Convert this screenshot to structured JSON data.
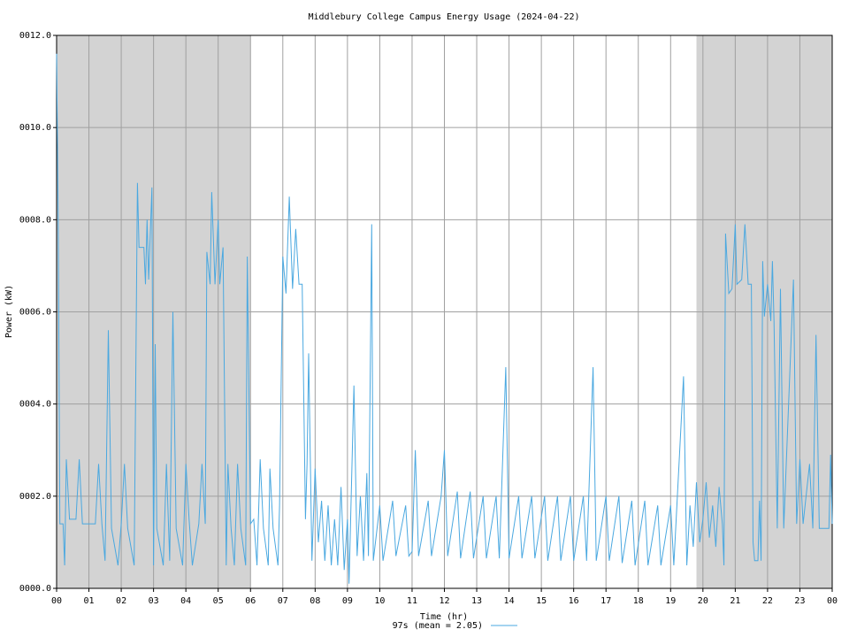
{
  "chart_data": {
    "type": "line",
    "title": "Middlebury College Campus Energy Usage (2024-04-22)",
    "x_label": "Time (hr)",
    "y_label": "Power (kW)",
    "xlim": [
      0,
      24
    ],
    "ylim": [
      0,
      12
    ],
    "xticks": [
      {
        "value": 0,
        "label": "00"
      },
      {
        "value": 1,
        "label": "01"
      },
      {
        "value": 2,
        "label": "02"
      },
      {
        "value": 3,
        "label": "03"
      },
      {
        "value": 4,
        "label": "04"
      },
      {
        "value": 5,
        "label": "05"
      },
      {
        "value": 6,
        "label": "06"
      },
      {
        "value": 7,
        "label": "07"
      },
      {
        "value": 8,
        "label": "08"
      },
      {
        "value": 9,
        "label": "09"
      },
      10,
      11,
      12,
      13,
      14,
      15,
      16,
      17,
      18,
      19,
      20,
      21,
      22,
      23,
      {
        "value": 24,
        "label": "00"
      }
    ],
    "yticks": [
      {
        "value": 0,
        "label": "0000.0"
      },
      {
        "value": 2,
        "label": "0002.0"
      },
      {
        "value": 4,
        "label": "0004.0"
      },
      {
        "value": 6,
        "label": "0006.0"
      },
      {
        "value": 8,
        "label": "0008.0"
      },
      {
        "value": 10,
        "label": "0010.0"
      },
      {
        "value": 12,
        "label": "0012.0"
      }
    ],
    "grid": true,
    "legend": "bottom",
    "shaded_regions": [
      [
        0,
        6
      ],
      [
        19.8,
        24
      ]
    ],
    "shade_color": "#d3d3d3",
    "series": [
      {
        "name": "97s (mean = 2.05)",
        "color": "#4aa8e0",
        "x": [
          0,
          0.05,
          0.1,
          0.2,
          0.25,
          0.3,
          0.4,
          0.6,
          0.7,
          0.8,
          1.0,
          1.2,
          1.3,
          1.4,
          1.5,
          1.6,
          1.7,
          1.9,
          2.0,
          2.1,
          2.2,
          2.4,
          2.5,
          2.55,
          2.7,
          2.75,
          2.8,
          2.85,
          2.95,
          3.0,
          3.05,
          3.1,
          3.3,
          3.4,
          3.5,
          3.6,
          3.7,
          3.9,
          4.0,
          4.1,
          4.2,
          4.4,
          4.5,
          4.6,
          4.65,
          4.75,
          4.8,
          4.9,
          5.0,
          5.05,
          5.15,
          5.25,
          5.3,
          5.4,
          5.5,
          5.6,
          5.7,
          5.85,
          5.9,
          6.0,
          6.1,
          6.2,
          6.3,
          6.4,
          6.55,
          6.6,
          6.7,
          6.85,
          6.9,
          7.0,
          7.1,
          7.2,
          7.3,
          7.4,
          7.5,
          7.6,
          7.7,
          7.75,
          7.8,
          7.9,
          8.0,
          8.1,
          8.2,
          8.3,
          8.4,
          8.5,
          8.6,
          8.7,
          8.8,
          8.9,
          9.0,
          9.05,
          9.2,
          9.3,
          9.4,
          9.5,
          9.6,
          9.65,
          9.75,
          9.8,
          10.0,
          10.1,
          10.4,
          10.5,
          10.8,
          10.9,
          11.0,
          11.1,
          11.2,
          11.5,
          11.6,
          11.9,
          12.0,
          12.1,
          12.4,
          12.5,
          12.8,
          12.9,
          13.2,
          13.3,
          13.6,
          13.7,
          13.9,
          14.0,
          14.3,
          14.4,
          14.7,
          14.8,
          15.1,
          15.2,
          15.5,
          15.6,
          15.9,
          16.0,
          16.3,
          16.4,
          16.6,
          16.7,
          17.0,
          17.1,
          17.4,
          17.5,
          17.8,
          17.9,
          18.2,
          18.3,
          18.6,
          18.7,
          19.0,
          19.1,
          19.4,
          19.5,
          19.6,
          19.7,
          19.8,
          19.9,
          20.0,
          20.1,
          20.2,
          20.3,
          20.4,
          20.5,
          20.6,
          20.65,
          20.7,
          20.8,
          20.9,
          21.0,
          21.05,
          21.2,
          21.3,
          21.4,
          21.5,
          21.55,
          21.6,
          21.7,
          21.75,
          21.8,
          21.85,
          21.9,
          22.0,
          22.1,
          22.15,
          22.2,
          22.3,
          22.4,
          22.5,
          22.8,
          22.9,
          23.0,
          23.1,
          23.3,
          23.4,
          23.5,
          23.6,
          23.9,
          23.95,
          24
        ],
        "values": [
          11.6,
          8,
          1.4,
          1.4,
          0.5,
          2.8,
          1.5,
          1.5,
          2.8,
          1.4,
          1.4,
          1.4,
          2.7,
          1.4,
          0.6,
          5.6,
          1.3,
          0.5,
          1.4,
          2.7,
          1.3,
          0.5,
          8.8,
          7.4,
          7.4,
          6.6,
          8.0,
          6.7,
          8.7,
          0.5,
          5.3,
          1.3,
          0.5,
          2.7,
          0.6,
          6.0,
          1.3,
          0.5,
          2.7,
          1.5,
          0.5,
          1.4,
          2.7,
          1.4,
          7.3,
          6.6,
          8.6,
          6.6,
          8.0,
          6.6,
          7.4,
          0.5,
          2.7,
          1.3,
          0.5,
          2.7,
          1.3,
          0.5,
          7.2,
          1.4,
          1.5,
          0.5,
          2.8,
          1.3,
          0.5,
          2.6,
          1.3,
          0.5,
          1.8,
          7.2,
          6.4,
          8.5,
          6.5,
          7.8,
          6.6,
          6.6,
          1.5,
          2.7,
          5.1,
          0.6,
          2.6,
          1.0,
          1.9,
          0.6,
          1.8,
          0.5,
          1.5,
          0.5,
          2.2,
          0.4,
          1.5,
          0.1,
          4.4,
          0.7,
          2.0,
          0.6,
          2.5,
          0.7,
          7.9,
          0.6,
          1.8,
          0.6,
          1.9,
          0.7,
          1.8,
          0.7,
          0.8,
          3.0,
          0.7,
          1.9,
          0.7,
          2.0,
          3.0,
          0.7,
          2.1,
          0.65,
          2.1,
          0.65,
          2.0,
          0.65,
          2.0,
          0.65,
          4.8,
          0.65,
          2.0,
          0.65,
          2.0,
          0.65,
          2.0,
          0.6,
          2.0,
          0.6,
          2.0,
          0.6,
          2.0,
          0.6,
          4.8,
          0.6,
          2.0,
          0.6,
          2.0,
          0.55,
          1.9,
          0.5,
          1.9,
          0.5,
          1.8,
          0.5,
          1.8,
          0.5,
          4.6,
          0.5,
          1.8,
          0.9,
          2.3,
          1.0,
          1.5,
          2.3,
          1.1,
          1.8,
          0.9,
          2.2,
          1.4,
          0.5,
          7.7,
          6.4,
          6.5,
          7.9,
          6.6,
          6.7,
          7.9,
          6.6,
          6.6,
          1.0,
          0.6,
          0.6,
          1.9,
          0.6,
          7.1,
          5.9,
          6.6,
          5.8,
          7.1,
          5.8,
          1.3,
          6.5,
          1.3,
          6.7,
          1.4,
          2.8,
          1.4,
          2.7,
          1.3,
          5.5,
          1.3,
          1.3,
          2.9,
          1.4
        ]
      }
    ]
  }
}
